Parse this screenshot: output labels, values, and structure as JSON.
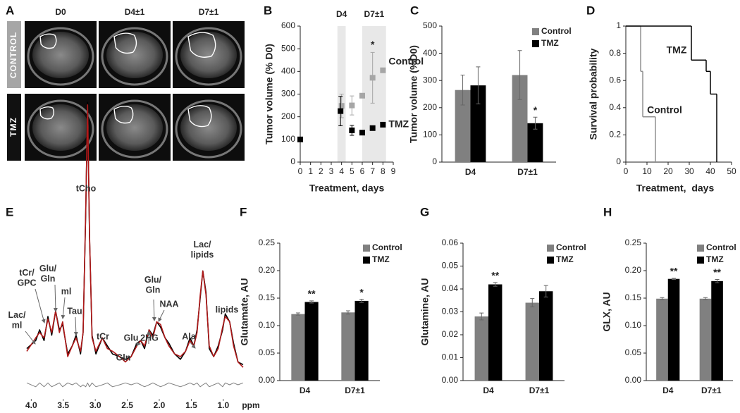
{
  "panel_labels": [
    "A",
    "B",
    "C",
    "D",
    "E",
    "F",
    "G",
    "H"
  ],
  "panel_a": {
    "columns": [
      "D0",
      "D4±1",
      "D7±1"
    ],
    "rows": [
      "CONTROL",
      "TMZ"
    ]
  },
  "chart_data": [
    {
      "type": "scatter",
      "ylabel": "Tumor volume (% D0)",
      "xlabel": "Treatment, days",
      "xlim": [
        0,
        9
      ],
      "xticks": [
        0,
        1,
        2,
        3,
        4,
        5,
        6,
        7,
        8,
        9
      ],
      "ylim": [
        0,
        600
      ],
      "yticks": [
        0,
        100,
        200,
        300,
        400,
        500,
        600
      ],
      "bands": [
        {
          "label": "D4",
          "range": [
            3.6,
            4.4
          ]
        },
        {
          "label": "D7±1",
          "range": [
            6,
            8.3
          ]
        }
      ],
      "series": [
        {
          "name": "Control",
          "color": "#a6a6a6",
          "x": [
            4,
            5,
            6,
            7,
            8
          ],
          "values": [
            248,
            250,
            293,
            372,
            405
          ],
          "errors": [
            52,
            42,
            null,
            112,
            null
          ],
          "stars": [
            null,
            null,
            null,
            "*",
            null
          ]
        },
        {
          "name": "TMZ",
          "color": "#000000",
          "x": [
            0,
            3.9,
            5,
            6,
            7,
            8
          ],
          "values": [
            100,
            225,
            140,
            130,
            150,
            165
          ],
          "errors": [
            null,
            65,
            22,
            null,
            null,
            null
          ]
        }
      ]
    },
    {
      "type": "bar",
      "ylabel": "Tumor volume (%D0)",
      "categories": [
        "D4",
        "D7±1"
      ],
      "ylim": [
        0,
        500
      ],
      "yticks": [
        0,
        100,
        200,
        300,
        400,
        500
      ],
      "legend": "top-right",
      "series": [
        {
          "name": "Control",
          "color": "#808080",
          "values": [
            265,
            320
          ],
          "errors": [
            55,
            90
          ]
        },
        {
          "name": "TMZ",
          "color": "#000000",
          "values": [
            282,
            143
          ],
          "errors": [
            68,
            22
          ],
          "stars": [
            null,
            "*"
          ]
        }
      ]
    },
    {
      "type": "step",
      "ylabel": "Survival probability",
      "xlabel": "Treatment,  days",
      "xlim": [
        0,
        50
      ],
      "xticks": [
        0,
        10,
        20,
        30,
        40,
        50
      ],
      "ylim": [
        0,
        1
      ],
      "yticks": [
        0,
        0.2,
        0.4,
        0.6,
        0.8,
        1
      ],
      "series": [
        {
          "name": "Control",
          "color": "#909090",
          "x": [
            0,
            7,
            8,
            14
          ],
          "values": [
            1,
            0.667,
            0.333,
            0
          ]
        },
        {
          "name": "TMZ",
          "color": "#000000",
          "x": [
            0,
            31,
            38,
            40,
            43
          ],
          "values": [
            1,
            0.75,
            0.667,
            0.5,
            0
          ]
        }
      ]
    },
    {
      "type": "spectrum",
      "xlabel": "ppm",
      "xlim": [
        4.07,
        0.69
      ],
      "xticks": [
        {
          "value": 4,
          "label": "4.0"
        },
        3.5,
        {
          "value": 3,
          "label": "3.0"
        },
        2.5,
        {
          "value": 2,
          "label": "2.0"
        },
        1.5,
        {
          "value": 1,
          "label": "1.0"
        }
      ],
      "ylim": [
        0,
        100
      ],
      "y2lim": [
        -4,
        4
      ],
      "annotations": [
        "Lac/\nml",
        "tCr/\nGPC",
        "Glu/\nGln",
        "ml",
        "Tau",
        "tCho",
        "tCr",
        "Gln",
        "Glu",
        "2HG",
        "Glu/\nGln",
        "NAA",
        "Ala",
        "Lac/\nlipids",
        "lipids"
      ],
      "x": [
        4.07,
        3.93,
        3.87,
        3.8,
        3.74,
        3.68,
        3.62,
        3.56,
        3.51,
        3.43,
        3.36,
        3.3,
        3.23,
        3.19,
        3.15,
        3.12,
        3.09,
        3.05,
        2.99,
        2.89,
        2.81,
        2.73,
        2.62,
        2.53,
        2.44,
        2.35,
        2.29,
        2.23,
        2.16,
        2.1,
        2.04,
        1.98,
        1.91,
        1.85,
        1.76,
        1.67,
        1.59,
        1.52,
        1.46,
        1.41,
        1.36,
        1.32,
        1.27,
        1.22,
        1.15,
        1.08,
        1.01,
        0.97,
        0.9,
        0.84,
        0.77,
        0.69
      ],
      "series": [
        {
          "color": "#000000",
          "values": [
            8,
            11,
            15,
            11,
            20,
            13,
            22,
            15,
            17,
            6,
            9,
            13,
            6,
            14,
            58,
            100,
            50,
            13,
            6,
            12,
            9,
            6,
            5,
            4,
            5,
            10,
            11,
            8,
            15,
            13,
            18,
            16,
            12,
            10,
            6,
            4,
            7,
            12,
            9,
            15,
            27,
            37,
            29,
            8,
            5,
            9,
            15,
            21,
            18,
            10,
            3,
            2
          ]
        },
        {
          "color": "#b01818",
          "values": [
            7,
            12,
            14,
            12,
            19,
            14,
            22,
            14,
            18,
            5,
            9,
            12,
            7,
            14,
            59,
            99,
            51,
            12,
            7,
            12,
            8,
            7,
            5,
            3,
            5,
            9,
            11,
            9,
            15,
            12,
            18,
            17,
            12,
            9,
            6,
            5,
            7,
            11,
            9,
            14,
            28,
            37,
            28,
            9,
            5,
            8,
            16,
            20,
            18,
            9,
            3,
            1
          ]
        },
        {
          "color": "#808080",
          "axis": "y2",
          "values": [
            1,
            -1,
            1,
            -1,
            1,
            -1,
            0,
            1,
            -1,
            1,
            0,
            1,
            -1,
            0,
            -1,
            1,
            -1,
            1,
            -1,
            0,
            1,
            -1,
            0,
            1,
            0,
            1,
            0,
            -1,
            0,
            1,
            0,
            -1,
            0,
            1,
            0,
            -1,
            0,
            1,
            0,
            1,
            -1,
            0,
            1,
            -1,
            0,
            1,
            -1,
            1,
            0,
            1,
            0,
            1
          ]
        }
      ]
    },
    {
      "type": "bar",
      "ylabel": "Glutamate, AU",
      "categories": [
        "D4",
        "D7±1"
      ],
      "ylim": [
        0,
        0.25
      ],
      "yticks": [
        {
          "value": 0,
          "label": "0.00"
        },
        0.05,
        {
          "value": 0.1,
          "label": "0.10"
        },
        0.15,
        {
          "value": 0.2,
          "label": "0.20"
        },
        0.25
      ],
      "legend": "top-right",
      "series": [
        {
          "name": "Control",
          "color": "#808080",
          "values": [
            0.121,
            0.124
          ],
          "errors": [
            0.002,
            0.003
          ]
        },
        {
          "name": "TMZ",
          "color": "#000000",
          "values": [
            0.143,
            0.145
          ],
          "errors": [
            0.002,
            0.003
          ],
          "stars": [
            "**",
            "*"
          ]
        }
      ]
    },
    {
      "type": "bar",
      "ylabel": "Glutamine, AU",
      "categories": [
        "D4",
        "D7±1"
      ],
      "ylim": [
        0,
        0.06
      ],
      "yticks": [
        {
          "value": 0,
          "label": "0.00"
        },
        0.01,
        0.02,
        0.03,
        0.04,
        0.05,
        0.06
      ],
      "legend": "top-right",
      "series": [
        {
          "name": "Control",
          "color": "#808080",
          "values": [
            0.028,
            0.034
          ],
          "errors": [
            0.0015,
            0.0018
          ]
        },
        {
          "name": "TMZ",
          "color": "#000000",
          "values": [
            0.042,
            0.039
          ],
          "errors": [
            0.0008,
            0.0025
          ],
          "stars": [
            "**",
            null
          ]
        }
      ]
    },
    {
      "type": "bar",
      "ylabel": "GLX, AU",
      "categories": [
        "D4",
        "D7±1"
      ],
      "ylim": [
        0,
        0.25
      ],
      "yticks": [
        {
          "value": 0,
          "label": "0.00"
        },
        0.05,
        {
          "value": 0.1,
          "label": "0.10"
        },
        0.15,
        {
          "value": 0.2,
          "label": "0.20"
        },
        0.25
      ],
      "legend": "top-right",
      "series": [
        {
          "name": "Control",
          "color": "#808080",
          "values": [
            0.149,
            0.149
          ],
          "errors": [
            0.002,
            0.002
          ]
        },
        {
          "name": "TMZ",
          "color": "#000000",
          "values": [
            0.185,
            0.181
          ],
          "errors": [
            0.001,
            0.003
          ],
          "stars": [
            "**",
            "**"
          ]
        }
      ]
    }
  ]
}
